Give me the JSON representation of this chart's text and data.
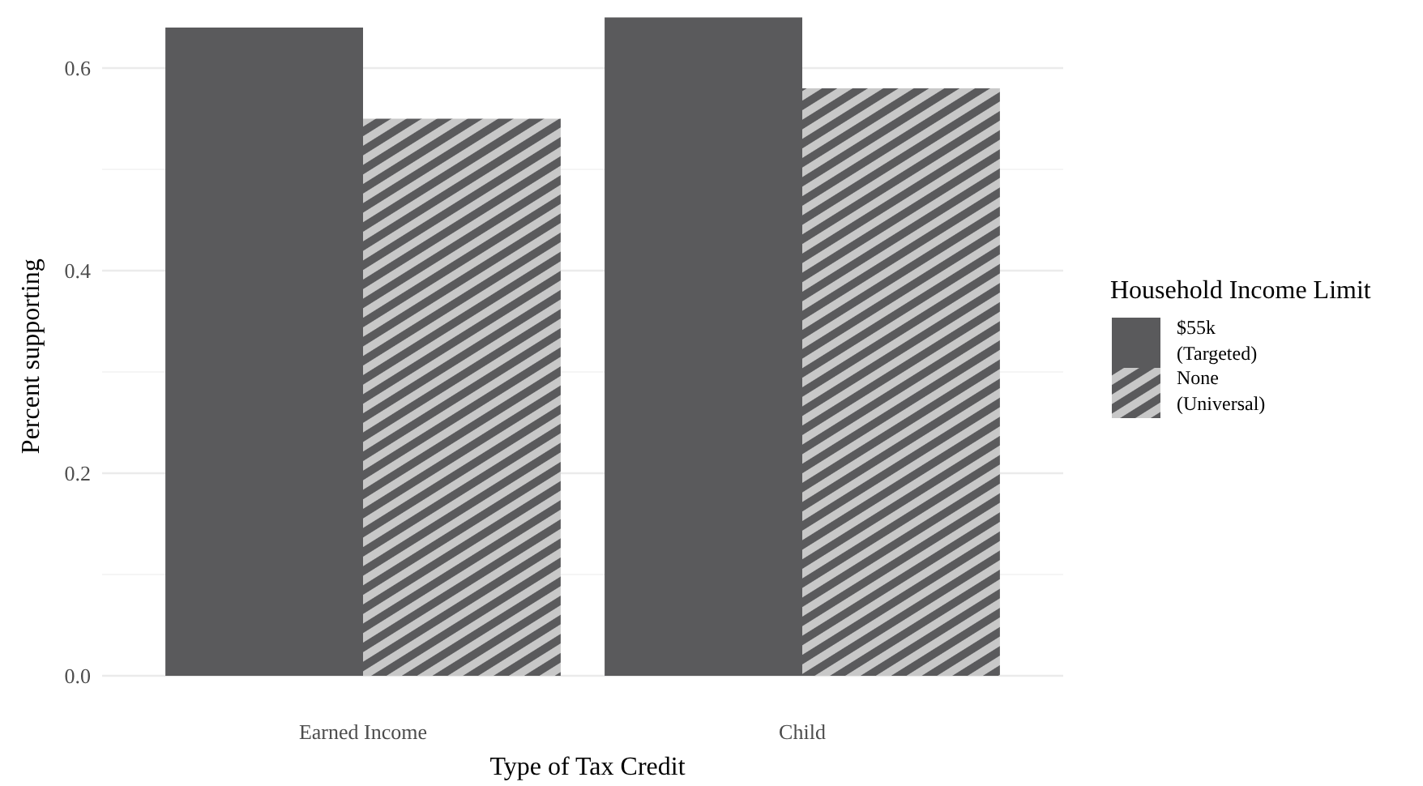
{
  "chart_data": {
    "type": "bar",
    "xlabel": "Type of Tax Credit",
    "ylabel": "Percent supporting",
    "legend_title": "Household Income Limit",
    "categories": [
      "Earned Income",
      "Child"
    ],
    "series": [
      {
        "name": "$55k (Targeted)",
        "color": "#5a5a5c",
        "values": [
          0.64,
          0.65
        ]
      },
      {
        "name": "None (Universal)",
        "color": "#c8c8c8",
        "values": [
          0.55,
          0.58
        ]
      }
    ],
    "ylim": [
      0,
      0.65
    ],
    "yticks": [
      {
        "value": 0,
        "label": "0.0"
      },
      {
        "value": 0.2,
        "label": "0.2"
      },
      {
        "value": 0.4,
        "label": "0.4"
      },
      {
        "value": 0.6,
        "label": "0.6"
      }
    ],
    "grid": true,
    "legend": "right"
  }
}
